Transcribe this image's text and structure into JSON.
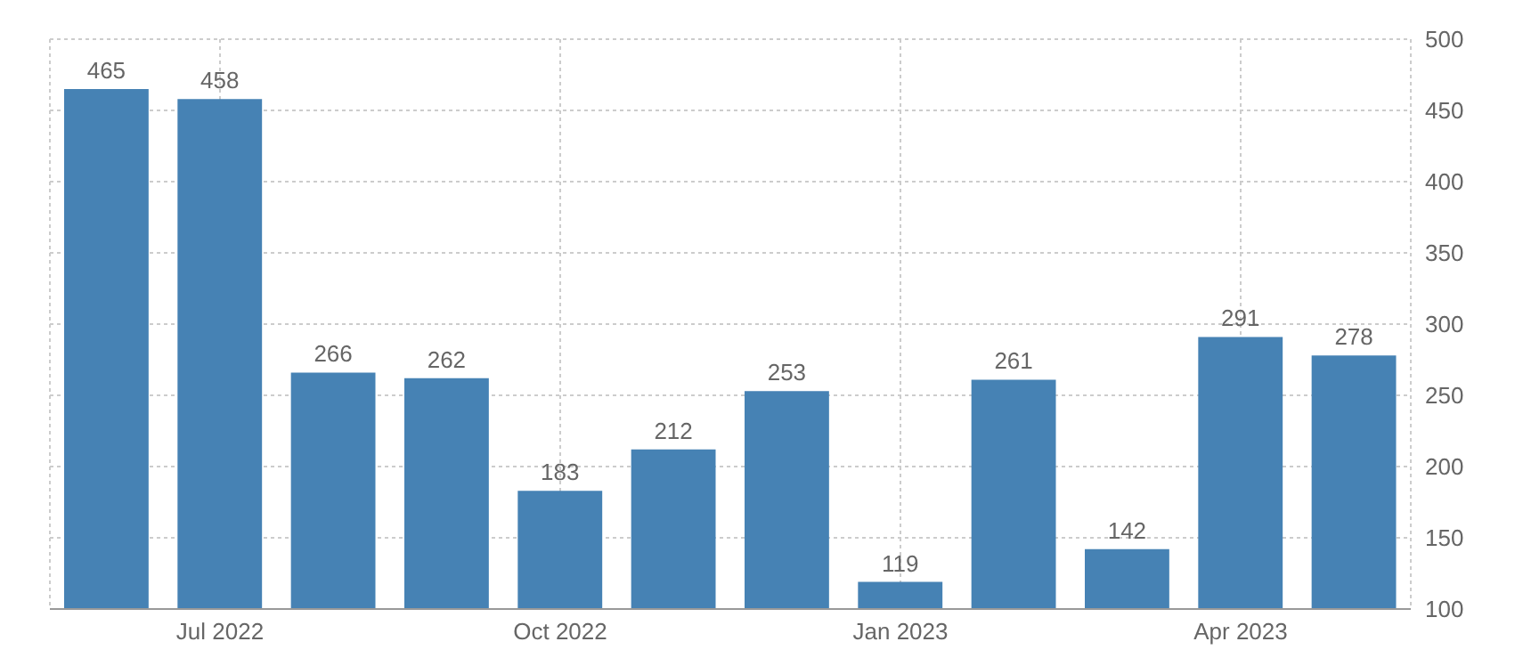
{
  "chart_data": {
    "type": "bar",
    "categories": [
      null,
      "Jul 2022",
      null,
      null,
      "Oct 2022",
      null,
      null,
      "Jan 2023",
      null,
      null,
      "Apr 2023",
      null
    ],
    "values": [
      465,
      458,
      266,
      262,
      183,
      212,
      253,
      119,
      261,
      142,
      291,
      278
    ],
    "color": "#4682b4",
    "ylim": [
      100,
      500
    ],
    "yticks": [
      100,
      150,
      200,
      250,
      300,
      350,
      400,
      450,
      500
    ],
    "grid": true,
    "data_labels": true
  }
}
